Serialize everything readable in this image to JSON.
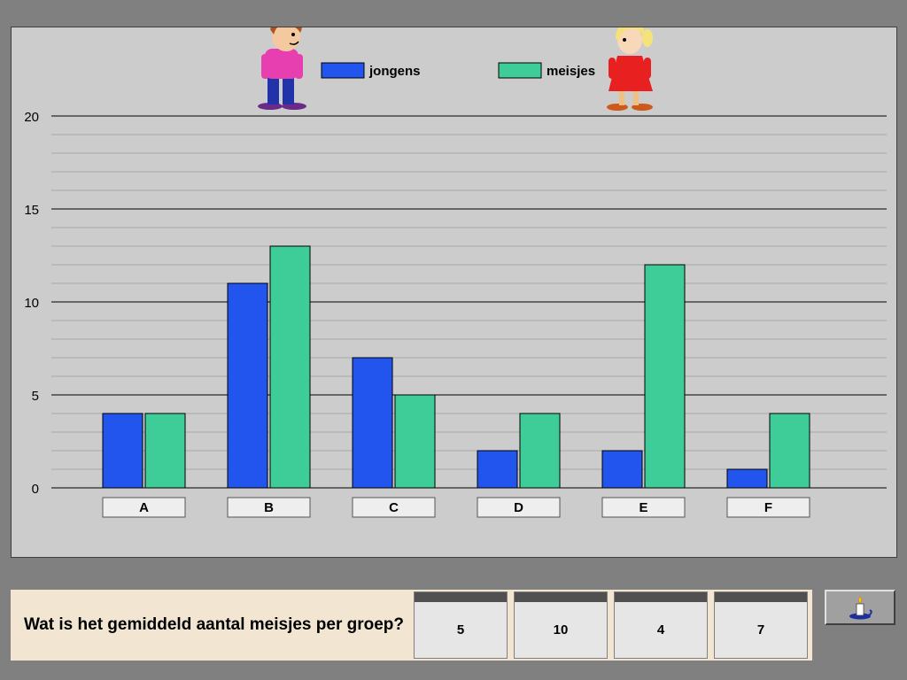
{
  "chart_data": {
    "type": "bar",
    "categories": [
      "A",
      "B",
      "C",
      "D",
      "E",
      "F"
    ],
    "series": [
      {
        "name": "jongens",
        "values": [
          4,
          11,
          7,
          2,
          2,
          1
        ],
        "color": "#2255ee"
      },
      {
        "name": "meisjes",
        "values": [
          4,
          13,
          5,
          4,
          12,
          4
        ],
        "color": "#3ecc99"
      }
    ],
    "ylim": [
      0,
      20
    ],
    "yticks": [
      0,
      5,
      10,
      15,
      20
    ],
    "minor_step": 1,
    "legend_position": "top",
    "grid": true
  },
  "question": "Wat is het gemiddeld aantal meisjes per groep?",
  "answers": [
    "5",
    "10",
    "4",
    "7"
  ],
  "icons": {
    "boy": "boy-character-icon",
    "girl": "girl-character-icon",
    "help": "candle-icon"
  }
}
